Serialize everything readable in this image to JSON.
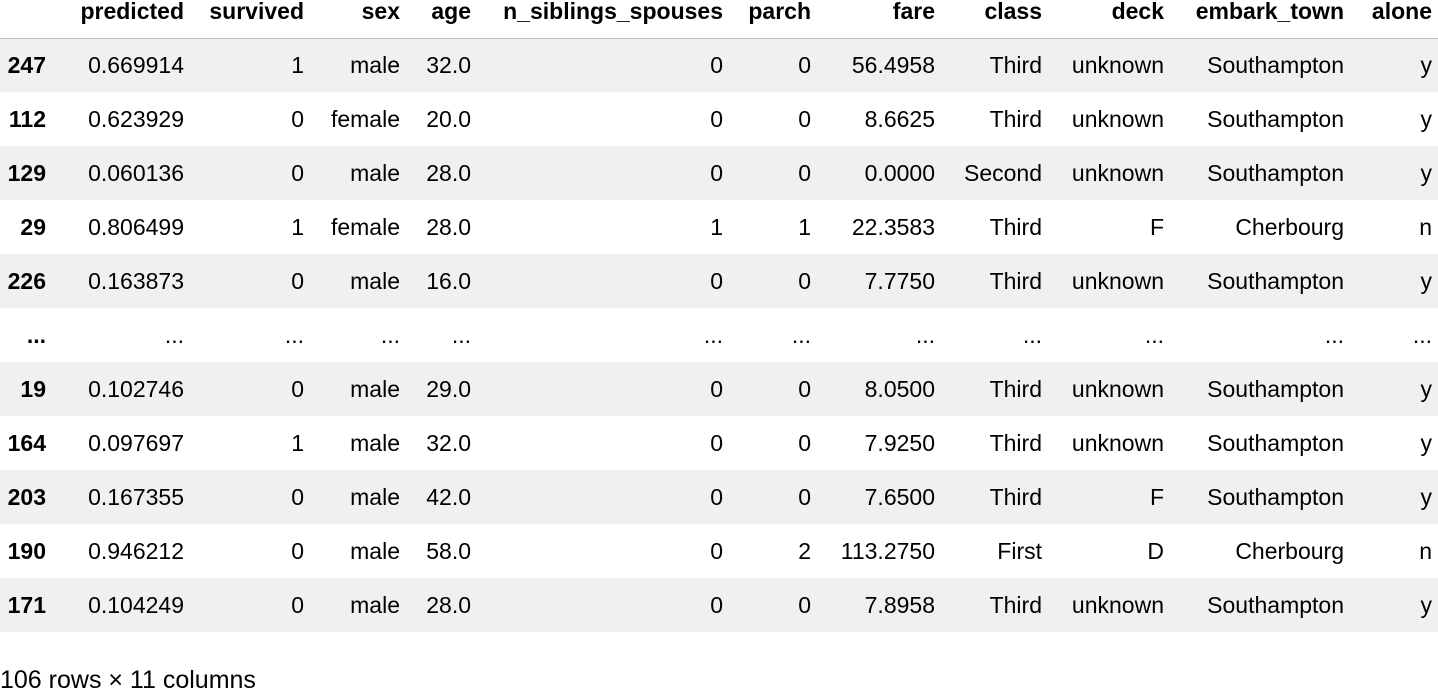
{
  "table": {
    "columns": [
      "predicted",
      "survived",
      "sex",
      "age",
      "n_siblings_spouses",
      "parch",
      "fare",
      "class",
      "deck",
      "embark_town",
      "alone"
    ],
    "rows": [
      {
        "index": "247",
        "cells": [
          "0.669914",
          "1",
          "male",
          "32.0",
          "0",
          "0",
          "56.4958",
          "Third",
          "unknown",
          "Southampton",
          "y"
        ]
      },
      {
        "index": "112",
        "cells": [
          "0.623929",
          "0",
          "female",
          "20.0",
          "0",
          "0",
          "8.6625",
          "Third",
          "unknown",
          "Southampton",
          "y"
        ]
      },
      {
        "index": "129",
        "cells": [
          "0.060136",
          "0",
          "male",
          "28.0",
          "0",
          "0",
          "0.0000",
          "Second",
          "unknown",
          "Southampton",
          "y"
        ]
      },
      {
        "index": "29",
        "cells": [
          "0.806499",
          "1",
          "female",
          "28.0",
          "1",
          "1",
          "22.3583",
          "Third",
          "F",
          "Cherbourg",
          "n"
        ]
      },
      {
        "index": "226",
        "cells": [
          "0.163873",
          "0",
          "male",
          "16.0",
          "0",
          "0",
          "7.7750",
          "Third",
          "unknown",
          "Southampton",
          "y"
        ]
      },
      {
        "index": "...",
        "cells": [
          "...",
          "...",
          "...",
          "...",
          "...",
          "...",
          "...",
          "...",
          "...",
          "...",
          "..."
        ]
      },
      {
        "index": "19",
        "cells": [
          "0.102746",
          "0",
          "male",
          "29.0",
          "0",
          "0",
          "8.0500",
          "Third",
          "unknown",
          "Southampton",
          "y"
        ]
      },
      {
        "index": "164",
        "cells": [
          "0.097697",
          "1",
          "male",
          "32.0",
          "0",
          "0",
          "7.9250",
          "Third",
          "unknown",
          "Southampton",
          "y"
        ]
      },
      {
        "index": "203",
        "cells": [
          "0.167355",
          "0",
          "male",
          "42.0",
          "0",
          "0",
          "7.6500",
          "Third",
          "F",
          "Southampton",
          "y"
        ]
      },
      {
        "index": "190",
        "cells": [
          "0.946212",
          "0",
          "male",
          "58.0",
          "0",
          "2",
          "113.2750",
          "First",
          "D",
          "Cherbourg",
          "n"
        ]
      },
      {
        "index": "171",
        "cells": [
          "0.104249",
          "0",
          "male",
          "28.0",
          "0",
          "0",
          "7.8958",
          "Third",
          "unknown",
          "Southampton",
          "y"
        ]
      }
    ]
  },
  "shape_info": "106 rows × 11 columns",
  "colors": {
    "stripe": "#f0f0f0",
    "background": "#ffffff",
    "text": "#000000"
  }
}
